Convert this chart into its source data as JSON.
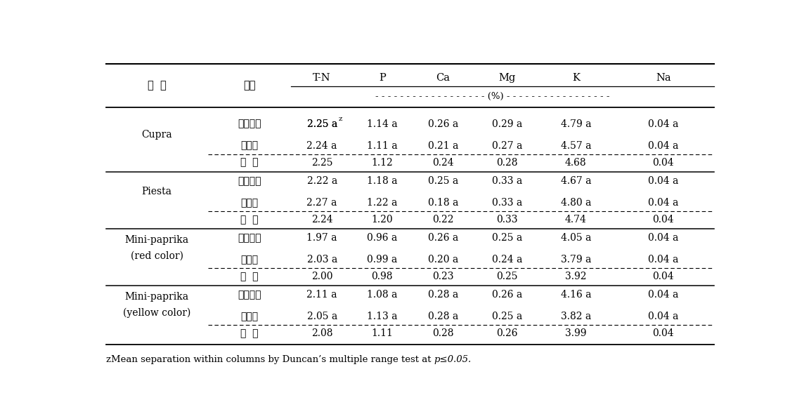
{
  "col_headers_row1": [
    "T-N",
    "P",
    "Ca",
    "Mg",
    "K",
    "Na"
  ],
  "unit_row": "- - - - - - - - - - - - - - - - - -  (%)  - - - - - - - - - - - - - - - - -",
  "varieties": [
    {
      "name": "포그냉방",
      "name2": null,
      "rows": [
        {
          "treatment": "포그냉방",
          "TN": "2.25 a",
          "TN_sup": "z",
          "P": "1.14 a",
          "Ca": "0.26 a",
          "Mg": "0.29 a",
          "K": "4.79 a",
          "Na": "0.04 a"
        },
        {
          "treatment": "대조구",
          "TN": "2.24 a",
          "TN_sup": "",
          "P": "1.11 a",
          "Ca": "0.21 a",
          "Mg": "0.27 a",
          "K": "4.57 a",
          "Na": "0.04 a"
        },
        {
          "treatment": "평  균",
          "TN": "2.25",
          "TN_sup": "",
          "P": "1.12",
          "Ca": "0.24",
          "Mg": "0.28",
          "K": "4.68",
          "Na": "0.04"
        }
      ],
      "label": "Cupra",
      "label2": null
    },
    {
      "name": "포그냉방",
      "name2": null,
      "rows": [
        {
          "treatment": "포그냉방",
          "TN": "2.22 a",
          "TN_sup": "",
          "P": "1.18 a",
          "Ca": "0.25 a",
          "Mg": "0.33 a",
          "K": "4.67 a",
          "Na": "0.04 a"
        },
        {
          "treatment": "대조구",
          "TN": "2.27 a",
          "TN_sup": "",
          "P": "1.22 a",
          "Ca": "0.18 a",
          "Mg": "0.33 a",
          "K": "4.80 a",
          "Na": "0.04 a"
        },
        {
          "treatment": "평  균",
          "TN": "2.24",
          "TN_sup": "",
          "P": "1.20",
          "Ca": "0.22",
          "Mg": "0.33",
          "K": "4.74",
          "Na": "0.04"
        }
      ],
      "label": "Piesta",
      "label2": null
    },
    {
      "name": "포그냉방",
      "name2": null,
      "rows": [
        {
          "treatment": "포그냉방",
          "TN": "1.97 a",
          "TN_sup": "",
          "P": "0.96 a",
          "Ca": "0.26 a",
          "Mg": "0.25 a",
          "K": "4.05 a",
          "Na": "0.04 a"
        },
        {
          "treatment": "대조구",
          "TN": "2.03 a",
          "TN_sup": "",
          "P": "0.99 a",
          "Ca": "0.20 a",
          "Mg": "0.24 a",
          "K": "3.79 a",
          "Na": "0.04 a"
        },
        {
          "treatment": "평  균",
          "TN": "2.00",
          "TN_sup": "",
          "P": "0.98",
          "Ca": "0.23",
          "Mg": "0.25",
          "K": "3.92",
          "Na": "0.04"
        }
      ],
      "label": "Mini-paprika",
      "label2": "(red color)"
    },
    {
      "name": "포그냉방",
      "name2": null,
      "rows": [
        {
          "treatment": "포그냉방",
          "TN": "2.11 a",
          "TN_sup": "",
          "P": "1.08 a",
          "Ca": "0.28 a",
          "Mg": "0.26 a",
          "K": "4.16 a",
          "Na": "0.04 a"
        },
        {
          "treatment": "대조구",
          "TN": "2.05 a",
          "TN_sup": "",
          "P": "1.13 a",
          "Ca": "0.28 a",
          "Mg": "0.25 a",
          "K": "3.82 a",
          "Na": "0.04 a"
        },
        {
          "treatment": "평  균",
          "TN": "2.08",
          "TN_sup": "",
          "P": "1.11",
          "Ca": "0.28",
          "Mg": "0.26",
          "K": "3.99",
          "Na": "0.04"
        }
      ],
      "label": "Mini-paprika",
      "label2": "(yellow color)"
    }
  ],
  "hdr_label1": "품  종",
  "hdr_label2": "처리",
  "footnote_normal": "zMean separation within columns by Duncan’s multiple range test at ",
  "footnote_italic": "p≤0.05."
}
